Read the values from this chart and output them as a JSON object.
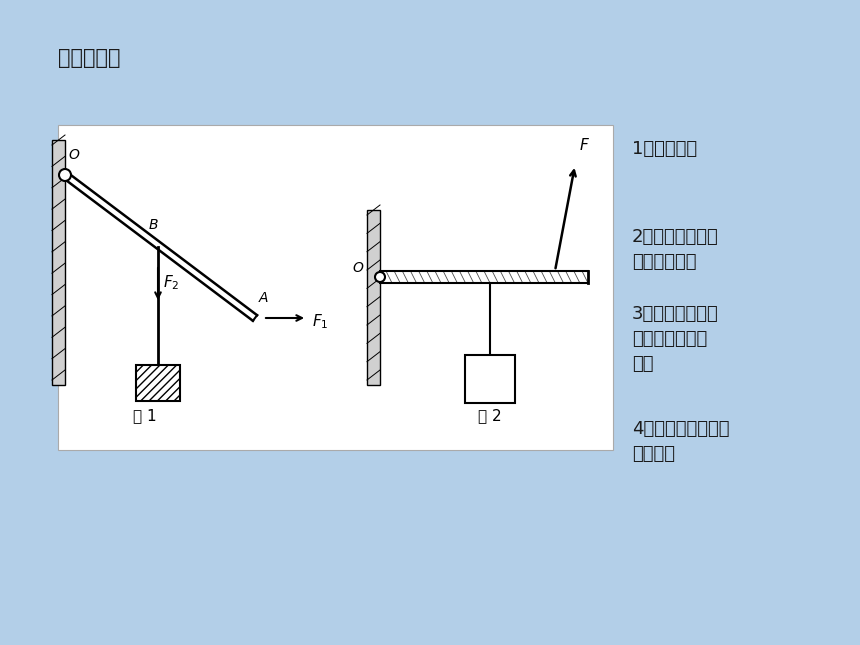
{
  "bg_color": "#b3cfe8",
  "title": "如何画力臂",
  "steps": [
    "1、找出支点",
    "2、画出力的作用\n线（用虚线）",
    "3、通过支点作这\n些力的作用线的\n垂线",
    "4、标出垂直符号，\n标出力臂"
  ],
  "fig1_label": "图 1",
  "fig2_label": "图 2"
}
